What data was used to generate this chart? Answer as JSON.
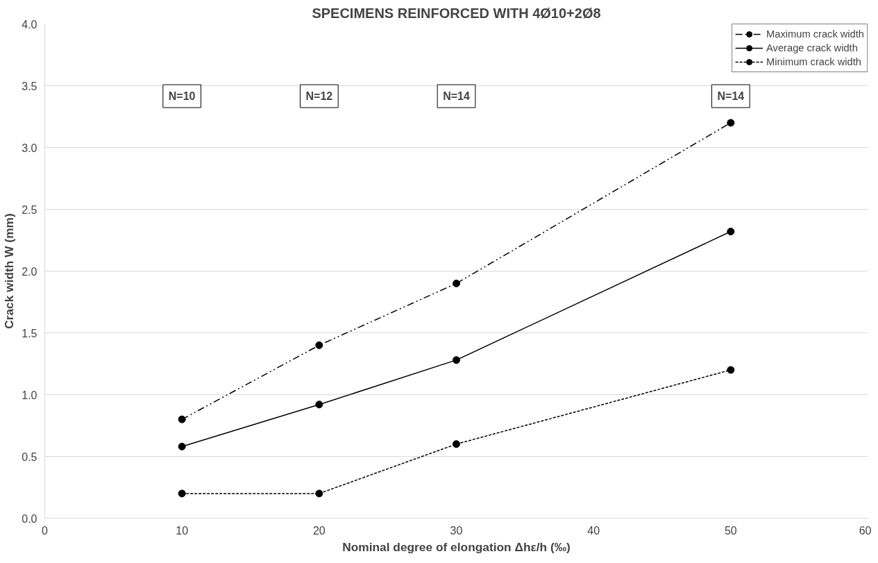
{
  "chart_data": {
    "type": "line",
    "title": "SPECIMENS REINFORCED WITH 4Ø10+2Ø8",
    "xlabel": "Nominal degree of elongation Δhε/h (‰)",
    "ylabel": "Crack width W (mm)",
    "x": [
      10,
      20,
      30,
      50
    ],
    "series": [
      {
        "name": "Maximum crack width",
        "color": "#000000",
        "line_style": "dashed",
        "values": [
          0.8,
          1.4,
          1.9,
          3.2
        ]
      },
      {
        "name": "Average crack width",
        "color": "#000000",
        "line_style": "solid",
        "values": [
          0.58,
          0.92,
          1.28,
          2.32
        ]
      },
      {
        "name": "Minimum crack width",
        "color": "#000000",
        "line_style": "dotted",
        "values": [
          0.2,
          0.2,
          0.6,
          1.2
        ]
      }
    ],
    "annotations": [
      "N=10",
      "N=12",
      "N=14",
      "N=14"
    ],
    "xlim": [
      0,
      60
    ],
    "xticks": [
      0,
      10,
      20,
      30,
      40,
      50,
      60
    ],
    "ylim": [
      0,
      4
    ],
    "yticks": [
      {
        "value": 0,
        "label": "0.0"
      },
      {
        "value": 0.5,
        "label": "0.5"
      },
      {
        "value": 1,
        "label": "1.0"
      },
      {
        "value": 1.5,
        "label": "1.5"
      },
      {
        "value": 2,
        "label": "2.0"
      },
      {
        "value": 2.5,
        "label": "2.5"
      },
      {
        "value": 3,
        "label": "3.0"
      },
      {
        "value": 3.5,
        "label": "3.5"
      },
      {
        "value": 4,
        "label": "4.0"
      }
    ],
    "grid": "y",
    "legend": "top right",
    "marker": "circle"
  }
}
